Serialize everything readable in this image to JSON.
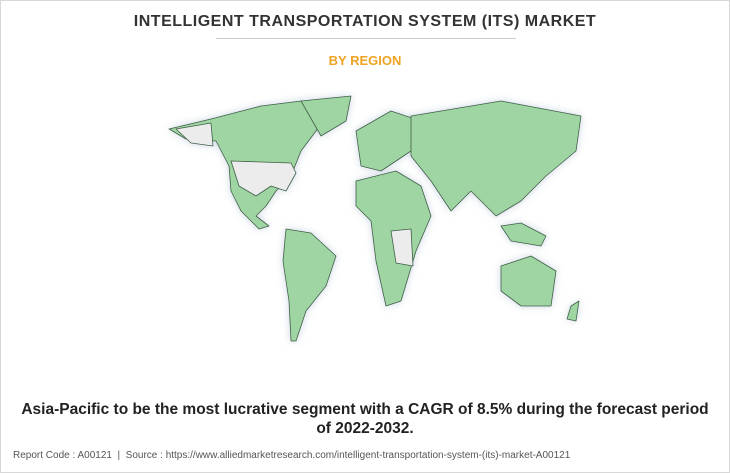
{
  "header": {
    "title": "INTELLIGENT TRANSPORTATION SYSTEM (ITS) MARKET",
    "subtitle": "BY REGION"
  },
  "caption": "Asia-Pacific to be the most lucrative segment with a CAGR of 8.5% during the forecast period of 2022-2032.",
  "footer": "Report Code : A00121  |  Source : https://www.alliedmarketresearch.com/intelligent-transportation-system-(its)-market-A00121"
}
